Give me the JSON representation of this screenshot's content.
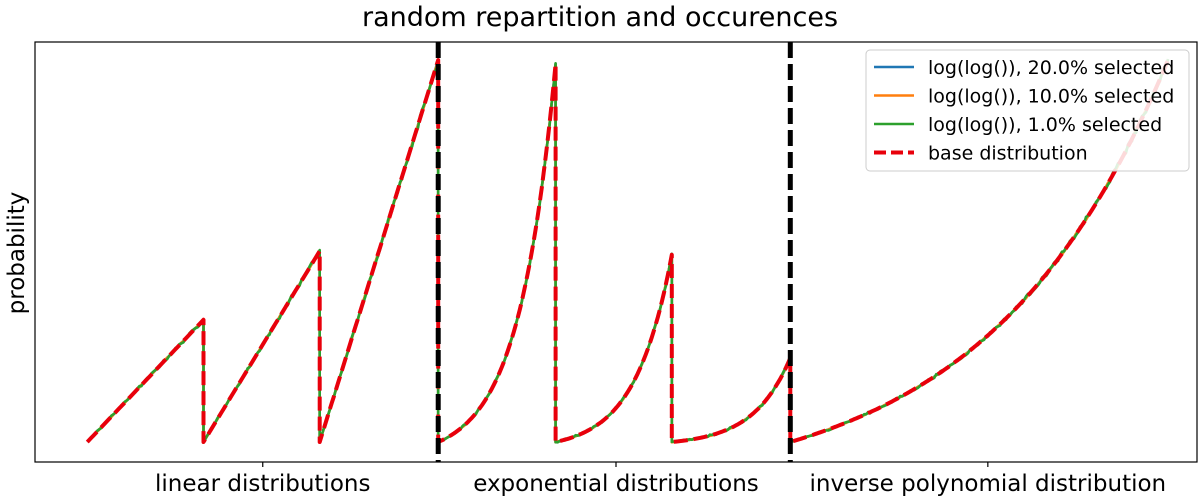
{
  "chart_data": {
    "type": "line",
    "title": "random repartition and occurences",
    "ylabel": "probability",
    "xlabel": "",
    "grid": false,
    "legend_position": "top-right",
    "x_categories": [
      "linear distributions",
      "exponential distributions",
      "inverse polynomial distribution"
    ],
    "y_ticks_shown": false,
    "segments": [
      {
        "group": "linear distributions",
        "shape": "linear",
        "y_start": 0.0,
        "y_end": 0.32
      },
      {
        "group": "linear distributions",
        "shape": "linear",
        "y_start": 0.0,
        "y_end": 0.5
      },
      {
        "group": "linear distributions",
        "shape": "linear",
        "y_start": 0.0,
        "y_end": 1.0
      },
      {
        "group": "exponential distributions",
        "shape": "exponential",
        "y_start": 0.0,
        "y_end": 0.99
      },
      {
        "group": "exponential distributions",
        "shape": "exponential",
        "y_start": 0.0,
        "y_end": 0.49
      },
      {
        "group": "exponential distributions",
        "shape": "exponential",
        "y_start": 0.0,
        "y_end": 0.22
      },
      {
        "group": "inverse polynomial distribution",
        "shape": "inverse-polynomial",
        "y_start": 0.0,
        "y_end": 1.0
      }
    ],
    "separators": [
      "between linear and exponential",
      "between exponential and inverse polynomial"
    ],
    "series": [
      {
        "name": "log(log()), 20.0% selected",
        "color": "#1f77b4",
        "style": "solid",
        "noise": 0.0
      },
      {
        "name": "log(log()), 10.0% selected",
        "color": "#ff7f0e",
        "style": "solid",
        "noise": 0.004
      },
      {
        "name": "log(log()), 1.0% selected",
        "color": "#2ca02c",
        "style": "solid",
        "noise": 0.012
      },
      {
        "name": "base distribution",
        "color": "#e8000b",
        "style": "dashed",
        "noise": 0.0
      }
    ]
  }
}
